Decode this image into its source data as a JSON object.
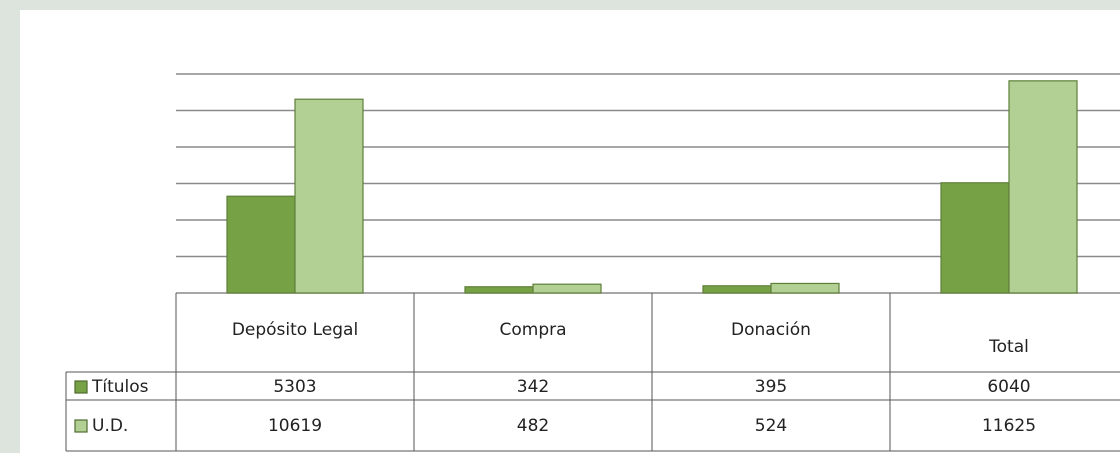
{
  "chart_data": {
    "type": "bar",
    "categories": [
      "Depósito Legal",
      "Compra",
      "Donación",
      "Total"
    ],
    "series": [
      {
        "name": "Títulos",
        "color": "#77a145",
        "values": [
          5303,
          342,
          395,
          6040
        ]
      },
      {
        "name": "U.D.",
        "color": "#b3d094",
        "values": [
          10619,
          482,
          524,
          11625
        ]
      }
    ],
    "ylim": [
      0,
      12000
    ],
    "yticks": [
      0,
      2000,
      4000,
      6000,
      8000,
      10000,
      12000
    ],
    "grid": true
  }
}
